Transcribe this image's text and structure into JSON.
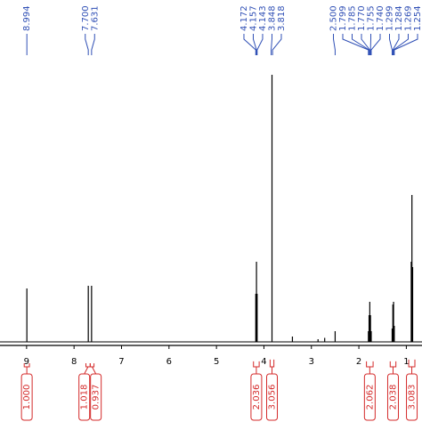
{
  "chart_data": {
    "type": "nmr",
    "xlim": [
      9.56,
      0.67
    ],
    "xticks": [
      9,
      8,
      7,
      6,
      5,
      4,
      3,
      2,
      1
    ],
    "ylim": [
      0,
      100
    ],
    "peaks": {
      "x": [
        8.994,
        7.7,
        7.631,
        4.172,
        4.157,
        4.143,
        3.83,
        3.4,
        2.86,
        2.72,
        2.5,
        1.799,
        1.785,
        1.77,
        1.755,
        1.74,
        1.299,
        1.284,
        1.269,
        1.254,
        0.897,
        0.882,
        0.867
      ],
      "values": [
        20,
        21,
        21,
        18,
        30,
        18,
        100,
        2,
        1,
        1.5,
        4,
        4,
        10,
        15,
        10,
        4,
        5,
        14,
        15,
        6,
        30,
        55,
        28
      ]
    },
    "peak_labels": [
      {
        "value": 8.994,
        "label": "8.994"
      },
      {
        "value": 7.7,
        "label": "7.700"
      },
      {
        "value": 7.631,
        "label": "7.631"
      },
      {
        "value": 4.172,
        "label": "4.172"
      },
      {
        "value": 4.157,
        "label": "4.157"
      },
      {
        "value": 4.143,
        "label": "4.143"
      },
      {
        "value": 3.848,
        "label": "3.848"
      },
      {
        "value": 3.818,
        "label": "3.818"
      },
      {
        "value": 2.5,
        "label": "2.500"
      },
      {
        "value": 1.799,
        "label": "1.799"
      },
      {
        "value": 1.785,
        "label": "1.785"
      },
      {
        "value": 1.77,
        "label": "1.770"
      },
      {
        "value": 1.755,
        "label": "1.755"
      },
      {
        "value": 1.74,
        "label": "1.740"
      },
      {
        "value": 1.299,
        "label": "1.299"
      },
      {
        "value": 1.284,
        "label": "1.284"
      },
      {
        "value": 1.269,
        "label": "1.269"
      },
      {
        "value": 1.254,
        "label": "1.254"
      }
    ],
    "integrals": [
      {
        "value": 1.0,
        "label": "1.000",
        "range": [
          9.05,
          8.94
        ]
      },
      {
        "value": 1.018,
        "label": "1.018",
        "range": [
          7.75,
          7.66
        ]
      },
      {
        "value": 0.937,
        "label": "0.937",
        "range": [
          7.66,
          7.58
        ]
      },
      {
        "value": 2.036,
        "label": "2.036",
        "range": [
          4.22,
          4.1
        ]
      },
      {
        "value": 3.056,
        "label": "3.056",
        "range": [
          3.87,
          3.79
        ]
      },
      {
        "value": 2.062,
        "label": "2.062",
        "range": [
          1.84,
          1.7
        ]
      },
      {
        "value": 2.038,
        "label": "2.038",
        "range": [
          1.34,
          1.22
        ]
      },
      {
        "value": 3.083,
        "label": "3.083",
        "range": [
          0.95,
          0.82
        ]
      }
    ],
    "line_color": "#000000",
    "label_color": "#2f4fb5",
    "integral_color": "#d42a2a"
  }
}
